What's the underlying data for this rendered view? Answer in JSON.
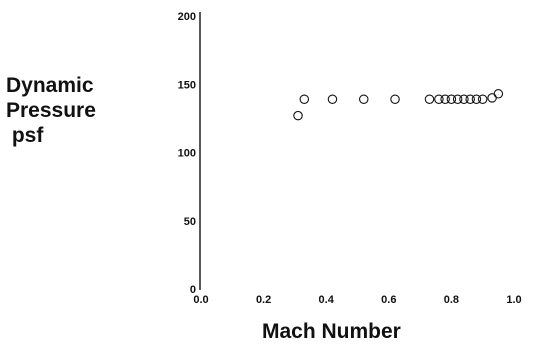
{
  "chart_data": {
    "type": "scatter",
    "title": "",
    "xlabel": "Mach Number",
    "ylabel_lines": [
      "Dynamic",
      "Pressure",
      " psf"
    ],
    "xlim": [
      0.0,
      1.0
    ],
    "ylim": [
      0,
      200
    ],
    "xticks": [
      "0.0",
      "0.2",
      "0.4",
      "0.6",
      "0.8",
      "1.0"
    ],
    "yticks": [
      "0",
      "50",
      "100",
      "150",
      "200"
    ],
    "grid": false,
    "marker": "open-circle",
    "series": [
      {
        "x": [
          0.31,
          0.33,
          0.42,
          0.52,
          0.62,
          0.73,
          0.76,
          0.78,
          0.8,
          0.82,
          0.84,
          0.86,
          0.88,
          0.9,
          0.93,
          0.95
        ],
        "y": [
          127,
          139,
          139,
          139,
          139,
          139,
          139,
          139,
          139,
          139,
          139,
          139,
          139,
          139,
          140,
          143
        ]
      }
    ]
  }
}
